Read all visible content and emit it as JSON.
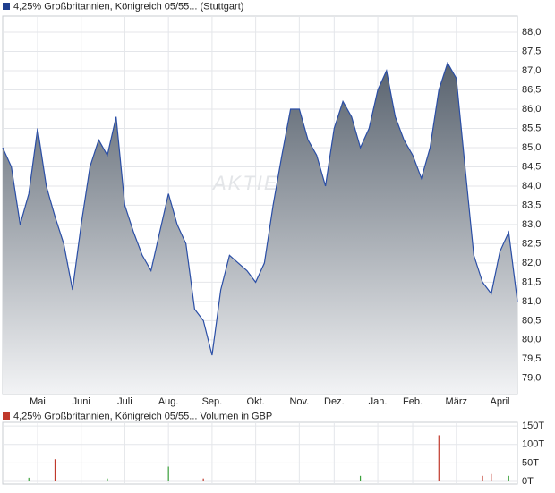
{
  "chart_data": [
    {
      "type": "area",
      "legend": "4,25% Großbritannien, Königreich 05/55... (Stuttgart)",
      "watermark": "AKTIEN",
      "color": "#2a4ea6",
      "legend_color": "#1f3f8f",
      "fill_top": "#58626e",
      "fill_bottom": "#f2f3f5",
      "grid": true,
      "categories": [
        null,
        null,
        null,
        null,
        "Mai",
        null,
        null,
        null,
        null,
        "Juni",
        null,
        null,
        null,
        null,
        "Juli",
        null,
        null,
        null,
        null,
        "Aug.",
        null,
        null,
        null,
        null,
        "Sep.",
        null,
        null,
        null,
        null,
        "Okt.",
        null,
        null,
        null,
        null,
        "Nov.",
        null,
        null,
        null,
        "Dez.",
        null,
        null,
        null,
        null,
        "Jan.",
        null,
        null,
        null,
        "Feb.",
        null,
        null,
        null,
        null,
        "März",
        null,
        null,
        null,
        null,
        "April",
        null,
        null
      ],
      "values": [
        85.0,
        84.5,
        83.0,
        83.8,
        85.5,
        84.0,
        83.2,
        82.5,
        81.3,
        83.0,
        84.5,
        85.2,
        84.8,
        85.8,
        83.5,
        82.8,
        82.2,
        81.8,
        82.8,
        83.8,
        83.0,
        82.5,
        80.8,
        80.5,
        79.6,
        81.3,
        82.2,
        82.0,
        81.8,
        81.5,
        82.0,
        83.5,
        84.8,
        86.0,
        86.0,
        85.2,
        84.8,
        84.0,
        85.5,
        86.2,
        85.8,
        85.0,
        85.5,
        86.5,
        87.0,
        85.8,
        85.2,
        84.8,
        84.2,
        85.0,
        86.5,
        87.2,
        86.8,
        84.5,
        82.2,
        81.5,
        81.2,
        82.3,
        82.8,
        81.0
      ],
      "ylim": [
        78.6,
        88.42
      ],
      "yticks": [
        {
          "value": 79,
          "label": "79,0"
        },
        {
          "value": 79.5,
          "label": "79,5"
        },
        {
          "value": 80,
          "label": "80,0"
        },
        {
          "value": 80.5,
          "label": "80,5"
        },
        {
          "value": 81,
          "label": "81,0"
        },
        {
          "value": 81.5,
          "label": "81,5"
        },
        {
          "value": 82,
          "label": "82,0"
        },
        {
          "value": 82.5,
          "label": "82,5"
        },
        {
          "value": 83,
          "label": "83,0"
        },
        {
          "value": 83.5,
          "label": "83,5"
        },
        {
          "value": 84,
          "label": "84,0"
        },
        {
          "value": 84.5,
          "label": "84,5"
        },
        {
          "value": 85,
          "label": "85,0"
        },
        {
          "value": 85.5,
          "label": "85,5"
        },
        {
          "value": 86,
          "label": "86,0"
        },
        {
          "value": 86.5,
          "label": "86,5"
        },
        {
          "value": 87,
          "label": "87,0"
        },
        {
          "value": 87.5,
          "label": "87,5"
        },
        {
          "value": 88,
          "label": "88,0"
        }
      ]
    },
    {
      "type": "bar",
      "legend": "4,25% Großbritannien, Königreich 05/55... Volumen in GBP",
      "legend_color": "#c0392b",
      "grid": true,
      "values": [
        0,
        0,
        0,
        10,
        0,
        0,
        60,
        0,
        0,
        0,
        0,
        0,
        8,
        0,
        0,
        0,
        0,
        0,
        0,
        40,
        0,
        0,
        0,
        8,
        0,
        0,
        0,
        0,
        0,
        0,
        0,
        0,
        0,
        0,
        0,
        0,
        0,
        0,
        0,
        0,
        0,
        15,
        0,
        0,
        0,
        0,
        0,
        0,
        0,
        0,
        125,
        0,
        0,
        0,
        0,
        15,
        20,
        0,
        15,
        0
      ],
      "colors": [
        "#c0392b",
        "#c0392b",
        "#c0392b",
        "#3aa13a",
        "#c0392b",
        "#c0392b",
        "#c0392b",
        "#c0392b",
        "#c0392b",
        "#c0392b",
        "#c0392b",
        "#c0392b",
        "#3aa13a",
        "#c0392b",
        "#c0392b",
        "#c0392b",
        "#c0392b",
        "#c0392b",
        "#c0392b",
        "#3aa13a",
        "#c0392b",
        "#c0392b",
        "#c0392b",
        "#c0392b",
        "#c0392b",
        "#c0392b",
        "#c0392b",
        "#c0392b",
        "#c0392b",
        "#c0392b",
        "#c0392b",
        "#c0392b",
        "#c0392b",
        "#c0392b",
        "#c0392b",
        "#c0392b",
        "#c0392b",
        "#c0392b",
        "#c0392b",
        "#c0392b",
        "#c0392b",
        "#3aa13a",
        "#c0392b",
        "#c0392b",
        "#c0392b",
        "#c0392b",
        "#c0392b",
        "#c0392b",
        "#c0392b",
        "#c0392b",
        "#c0392b",
        "#c0392b",
        "#c0392b",
        "#c0392b",
        "#c0392b",
        "#c0392b",
        "#c0392b",
        "#c0392b",
        "#3aa13a",
        "#c0392b"
      ],
      "ylim": [
        0,
        160
      ],
      "yticks": [
        {
          "value": 0,
          "label": "0T"
        },
        {
          "value": 50,
          "label": "50T"
        },
        {
          "value": 100,
          "label": "100T"
        },
        {
          "value": 150,
          "label": "150T"
        }
      ]
    }
  ]
}
